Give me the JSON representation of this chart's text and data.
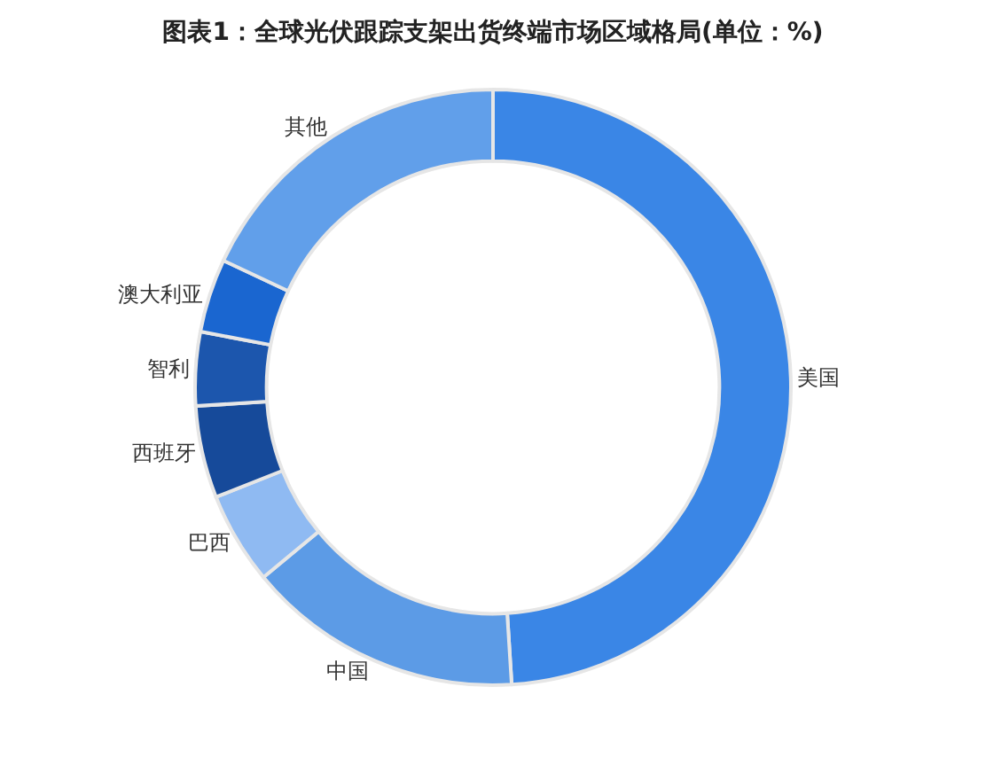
{
  "chart_data": {
    "type": "donut",
    "title": "图表1：全球光伏跟踪支架出货终端市场区域格局(单位：%)",
    "categories": [
      "美国",
      "中国",
      "巴西",
      "西班牙",
      "智利",
      "澳大利亚",
      "其他"
    ],
    "values": [
      49,
      15,
      5,
      5,
      4,
      4,
      18
    ],
    "colors": [
      "#3a86e6",
      "#5c9be6",
      "#8fbaf2",
      "#164a9a",
      "#1c56ad",
      "#1a66d0",
      "#619fea"
    ],
    "legend": false
  }
}
